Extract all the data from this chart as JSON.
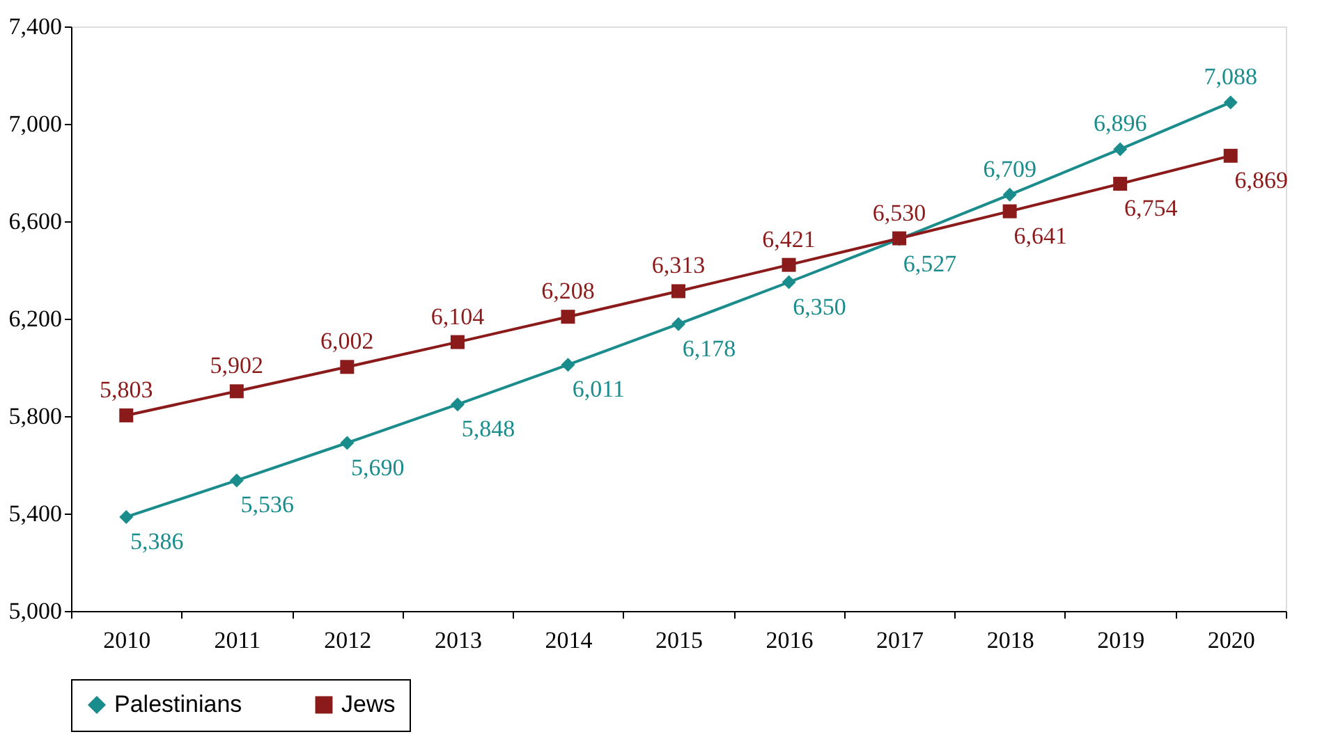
{
  "chart_data": {
    "type": "line",
    "categories": [
      "2010",
      "2011",
      "2012",
      "2013",
      "2014",
      "2015",
      "2016",
      "2017",
      "2018",
      "2019",
      "2020"
    ],
    "series": [
      {
        "name": "Palestinians",
        "color": "#1a8c8c",
        "marker": "diamond",
        "values": [
          5386,
          5536,
          5690,
          5848,
          6011,
          6178,
          6350,
          6527,
          6709,
          6896,
          7088
        ],
        "value_labels": [
          "5,386",
          "5,536",
          "5,690",
          "5,848",
          "6,011",
          "6,178",
          "6,350",
          "6,527",
          "6,709",
          "6,896",
          "7,088"
        ]
      },
      {
        "name": "Jews",
        "color": "#8b1a1a",
        "marker": "square",
        "values": [
          5803,
          5902,
          6002,
          6104,
          6208,
          6313,
          6421,
          6530,
          6641,
          6754,
          6869
        ],
        "value_labels": [
          "5,803",
          "5,902",
          "6,002",
          "6,104",
          "6,208",
          "6,313",
          "6,421",
          "6,530",
          "6,641",
          "6,754",
          "6,869"
        ]
      }
    ],
    "ylim": [
      5000,
      7400
    ],
    "yticks": [
      {
        "value": 5000,
        "label": "5,000"
      },
      {
        "value": 5400,
        "label": "5,400"
      },
      {
        "value": 5800,
        "label": "5,800"
      },
      {
        "value": 6200,
        "label": "6,200"
      },
      {
        "value": 6600,
        "label": "6,600"
      },
      {
        "value": 7000,
        "label": "7,000"
      },
      {
        "value": 7400,
        "label": "7,400"
      }
    ],
    "grid": false,
    "legend": "bottom"
  }
}
